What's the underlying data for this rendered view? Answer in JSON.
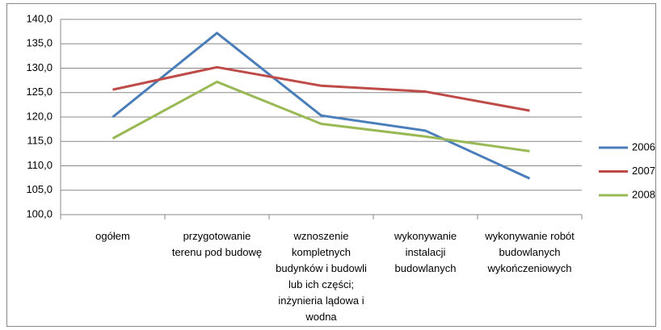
{
  "chart_data": {
    "type": "line",
    "categories": [
      "ogółem",
      "przygotowanie terenu pod budowę",
      "wznoszenie kompletnych budynków i budowli lub ich części; inżynieria lądowa i wodna",
      "wykonywanie instalacji budowlanych",
      "wykonywanie robót budowlanych wykończeniowych"
    ],
    "series": [
      {
        "name": "2006",
        "color": "#4a7ebb",
        "values": [
          120.0,
          137.2,
          120.3,
          117.2,
          107.4
        ]
      },
      {
        "name": "2007",
        "color": "#be4b48",
        "values": [
          125.6,
          130.2,
          126.4,
          125.2,
          121.3
        ]
      },
      {
        "name": "2008",
        "color": "#98b954",
        "values": [
          115.6,
          127.2,
          118.6,
          116.0,
          113.0
        ]
      }
    ],
    "ylim": [
      100,
      140
    ],
    "yticks": [
      {
        "value": 100,
        "label": "100,0"
      },
      {
        "value": 105,
        "label": "105,0"
      },
      {
        "value": 110,
        "label": "110,0"
      },
      {
        "value": 115,
        "label": "115,0"
      },
      {
        "value": 120,
        "label": "120,0"
      },
      {
        "value": 125,
        "label": "125,0"
      },
      {
        "value": 130,
        "label": "130,0"
      },
      {
        "value": 135,
        "label": "135,0"
      },
      {
        "value": 140,
        "label": "140,0"
      }
    ],
    "grid": true,
    "legend": "right"
  }
}
